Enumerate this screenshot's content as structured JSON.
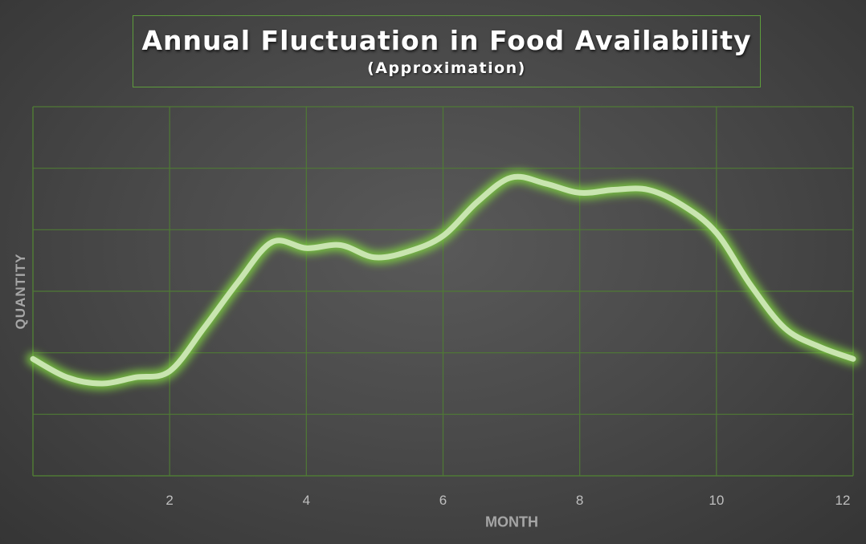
{
  "chart_data": {
    "type": "line",
    "title": "Annual Fluctuation in Food Availability",
    "subtitle": "(Approximation)",
    "xlabel": "MONTH",
    "ylabel": "QUANTITY",
    "x_ticks": [
      2,
      4,
      6,
      8,
      10,
      12
    ],
    "xlim": [
      0,
      12
    ],
    "ylim": [
      0,
      6
    ],
    "grid": true,
    "y_tick_labels_shown": false,
    "series": [
      {
        "x": [
          0,
          0.5,
          1.0,
          1.5,
          2.0,
          2.5,
          3.0,
          3.5,
          4.0,
          4.5,
          5.0,
          5.5,
          6.0,
          6.5,
          7.0,
          7.5,
          8.0,
          8.5,
          9.0,
          9.5,
          10.0,
          10.5,
          11.0,
          11.5,
          12.0
        ],
        "y": [
          1.9,
          1.6,
          1.5,
          1.6,
          1.7,
          2.4,
          3.15,
          3.8,
          3.7,
          3.75,
          3.55,
          3.65,
          3.9,
          4.45,
          4.85,
          4.75,
          4.6,
          4.65,
          4.65,
          4.4,
          3.95,
          3.1,
          2.4,
          2.1,
          1.9
        ]
      }
    ],
    "colors": {
      "line": "#c9e5b0",
      "glow": "#7fd33f",
      "grid": "#4f7a35",
      "title_border": "#5d9c3c"
    }
  }
}
